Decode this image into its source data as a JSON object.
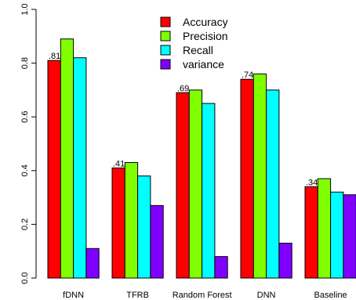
{
  "chart_data": {
    "type": "bar",
    "categories": [
      "fDNN",
      "TFRB",
      "Random Forest",
      "DNN",
      "Baseline"
    ],
    "series": [
      {
        "name": "Accuracy",
        "color": "#ff0000",
        "values": [
          0.81,
          0.41,
          0.69,
          0.74,
          0.34
        ]
      },
      {
        "name": "Precision",
        "color": "#80ff00",
        "values": [
          0.89,
          0.43,
          0.7,
          0.76,
          0.37
        ]
      },
      {
        "name": "Recall",
        "color": "#00ffff",
        "values": [
          0.82,
          0.38,
          0.65,
          0.7,
          0.32
        ]
      },
      {
        "name": "variance",
        "color": "#8000ff",
        "values": [
          0.11,
          0.27,
          0.08,
          0.13,
          0.31
        ]
      }
    ],
    "data_labels": [
      ".81",
      ".41",
      ".69",
      ".74",
      ".34"
    ],
    "y_ticks": [
      "0.0",
      "0.2",
      "0.4",
      "0.6",
      "0.8",
      "1.0"
    ],
    "ylim": [
      0,
      1.0
    ],
    "xlabel": "",
    "ylabel": "",
    "title": "",
    "legend_position": "top-center",
    "grid": false
  }
}
